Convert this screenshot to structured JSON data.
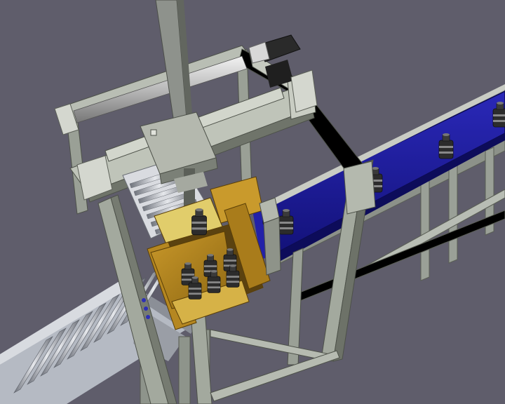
{
  "scene": {
    "background": "#5f5d6b",
    "frame_color": "#9ea49a",
    "roller_conveyor_color": "#b7bcc4",
    "belt_color": "#1c1aa0",
    "box_color": "#b88a22",
    "box_flap_color": "#e2cf6a",
    "bottle_color": "#2c2c2c",
    "gantry_column_color": "#8e928c"
  },
  "counts": {
    "bottles_on_belt": 5,
    "bottles_in_box": 6,
    "bottles_in_gripper": 1
  }
}
